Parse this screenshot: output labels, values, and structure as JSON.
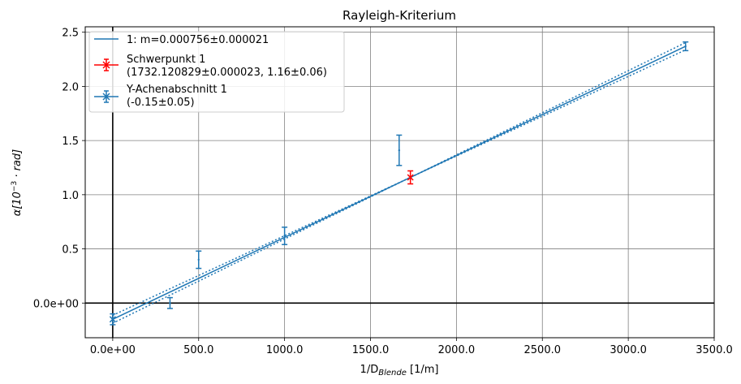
{
  "chart_data": {
    "type": "scatter",
    "title": "Rayleigh-Kriterium",
    "xlabel": "1/D",
    "xlabel_sub": "Blende",
    "xlabel_unit": " [1/m]",
    "ylabel": "α[10",
    "ylabel_sup": "−3",
    "ylabel_rest": " · rad]",
    "xlim": [
      -160,
      3500
    ],
    "ylim": [
      -0.32,
      2.55
    ],
    "xticks": [
      0,
      500,
      1000,
      1500,
      2000,
      2500,
      3000,
      3500
    ],
    "xtick_labels": [
      "0.0e+00",
      "500.0",
      "1000.0",
      "1500.0",
      "2000.0",
      "2500.0",
      "3000.0",
      "3500.0"
    ],
    "yticks": [
      0,
      0.5,
      1.0,
      1.5,
      2.0,
      2.5
    ],
    "ytick_labels": [
      "0.0e+00",
      "0.5",
      "1.0",
      "1.5",
      "2.0",
      "2.5"
    ],
    "grid": true,
    "legend_position": "top-left",
    "legend": [
      {
        "label": "1: m=0.000756±0.000021",
        "kind": "line",
        "color": "#1f77b4"
      },
      {
        "label": "Schwerpunkt 1",
        "label2": "(1732.120829±0.000023, 1.16±0.06)",
        "kind": "errorbar",
        "color": "#ff0000"
      },
      {
        "label": "Y-Achenabschnitt 1",
        "label2": "(-0.15±0.05)",
        "kind": "errorbar",
        "color": "#1f77b4"
      }
    ],
    "fit": {
      "slope": 0.000756,
      "slope_err": 2.1e-05,
      "intercept": -0.15,
      "x_range": [
        0,
        3333
      ],
      "color": "#1f77b4"
    },
    "data_points": {
      "color": "#1f77b4",
      "x": [
        333.3,
        500,
        1000,
        1666.7,
        3333.3
      ],
      "y": [
        0.0,
        0.4,
        0.62,
        1.41,
        2.37
      ],
      "yerr": [
        0.05,
        0.08,
        0.08,
        0.14,
        0.04
      ]
    },
    "centroid": {
      "x": 1732.120829,
      "y": 1.16,
      "yerr": 0.06,
      "color": "#ff0000"
    },
    "intercept_point": {
      "x": 0,
      "y": -0.15,
      "yerr": 0.05,
      "color": "#1f77b4"
    }
  }
}
